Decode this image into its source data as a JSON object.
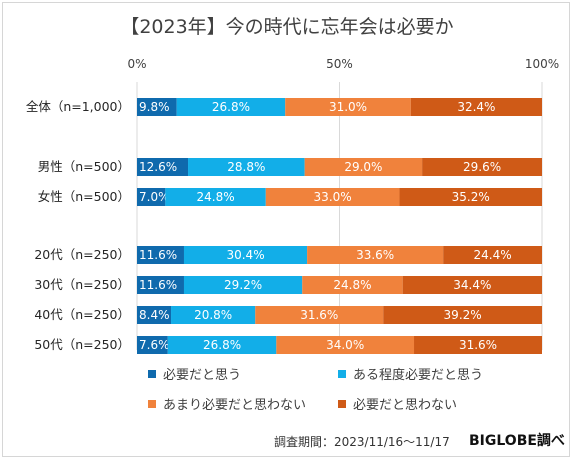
{
  "chart_data": {
    "type": "bar",
    "orientation": "horizontal",
    "stacked": true,
    "title": "【2023年】今の時代に忘年会は必要か",
    "categories": [
      "全体（n=1,000）",
      "男性（n=500）",
      "女性（n=500）",
      "20代（n=250）",
      "30代（n=250）",
      "40代（n=250）",
      "50代（n=250）"
    ],
    "xlim": [
      0,
      100
    ],
    "xticks": [
      "0%",
      "50%",
      "100%"
    ],
    "grid": true,
    "legend_position": "bottom",
    "series": [
      {
        "name": "必要だと思う",
        "color": "#0f6aad",
        "values": [
          9.8,
          12.6,
          7.0,
          11.6,
          11.6,
          8.4,
          7.6
        ],
        "labels": [
          "9.8%",
          "12.6%",
          "7.0%",
          "11.6%",
          "11.6%",
          "8.4%",
          "7.6%"
        ]
      },
      {
        "name": "ある程度必要だと思う",
        "color": "#12aee8",
        "values": [
          26.8,
          28.8,
          24.8,
          30.4,
          29.2,
          20.8,
          26.8
        ],
        "labels": [
          "26.8%",
          "28.8%",
          "24.8%",
          "30.4%",
          "29.2%",
          "20.8%",
          "26.8%"
        ]
      },
      {
        "name": "あまり必要だと思わない",
        "color": "#f0823c",
        "values": [
          31.0,
          29.0,
          33.0,
          33.6,
          24.8,
          31.6,
          34.0
        ],
        "labels": [
          "31.0%",
          "29.0%",
          "33.0%",
          "33.6%",
          "24.8%",
          "31.6%",
          "34.0%"
        ]
      },
      {
        "name": "必要だと思わない",
        "color": "#cf5a17",
        "values": [
          32.4,
          29.6,
          35.2,
          24.4,
          34.4,
          39.2,
          31.6
        ],
        "labels": [
          "32.4%",
          "29.6%",
          "35.2%",
          "24.4%",
          "34.4%",
          "39.2%",
          "31.6%"
        ]
      }
    ]
  },
  "footer": {
    "note": "調査期間：2023/11/16～11/17",
    "brand": "BIGLOBE調べ"
  }
}
